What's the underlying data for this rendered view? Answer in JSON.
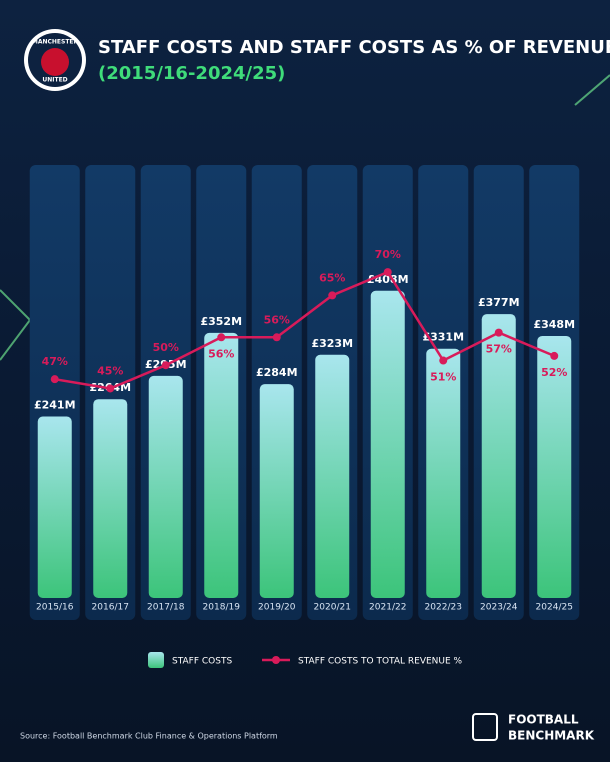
{
  "chart_data": {
    "type": "bar-line",
    "title": "STAFF COSTS AND STAFF COSTS AS % OF REVENUE",
    "subtitle": "(2015/16-2024/25)",
    "categories": [
      "2015/16",
      "2016/17",
      "2017/18",
      "2018/19",
      "2019/20",
      "2020/21",
      "2021/22",
      "2022/23",
      "2023/24",
      "2024/25"
    ],
    "series": [
      {
        "name": "STAFF COSTS",
        "type": "bar",
        "color": "#3cc47a",
        "values": [
          241,
          264,
          295,
          352,
          284,
          323,
          408,
          331,
          377,
          348
        ],
        "value_labels": [
          "£241M",
          "£264M",
          "£295M",
          "£352M",
          "£284M",
          "£323M",
          "£408M",
          "£331M",
          "£377M",
          "£348M"
        ]
      },
      {
        "name": "STAFF COSTS TO TOTAL REVENUE %",
        "type": "line",
        "axis": "y2",
        "color": "#d81b5a",
        "values": [
          47,
          45,
          50,
          56,
          56,
          65,
          70,
          51,
          57,
          52
        ],
        "value_labels": [
          "47%",
          "45%",
          "50%",
          "56%",
          "56%",
          "65%",
          "70%",
          "51%",
          "57%",
          "52%"
        ]
      }
    ],
    "ylim": [
      0,
      575
    ],
    "y2lim": [
      0,
      93
    ],
    "source": "Source: Football Benchmark Club Finance & Operations Platform",
    "brand": [
      "FOOTBALL",
      "BENCHMARK"
    ],
    "crest": [
      "MANCHESTER",
      "UNITED"
    ]
  }
}
